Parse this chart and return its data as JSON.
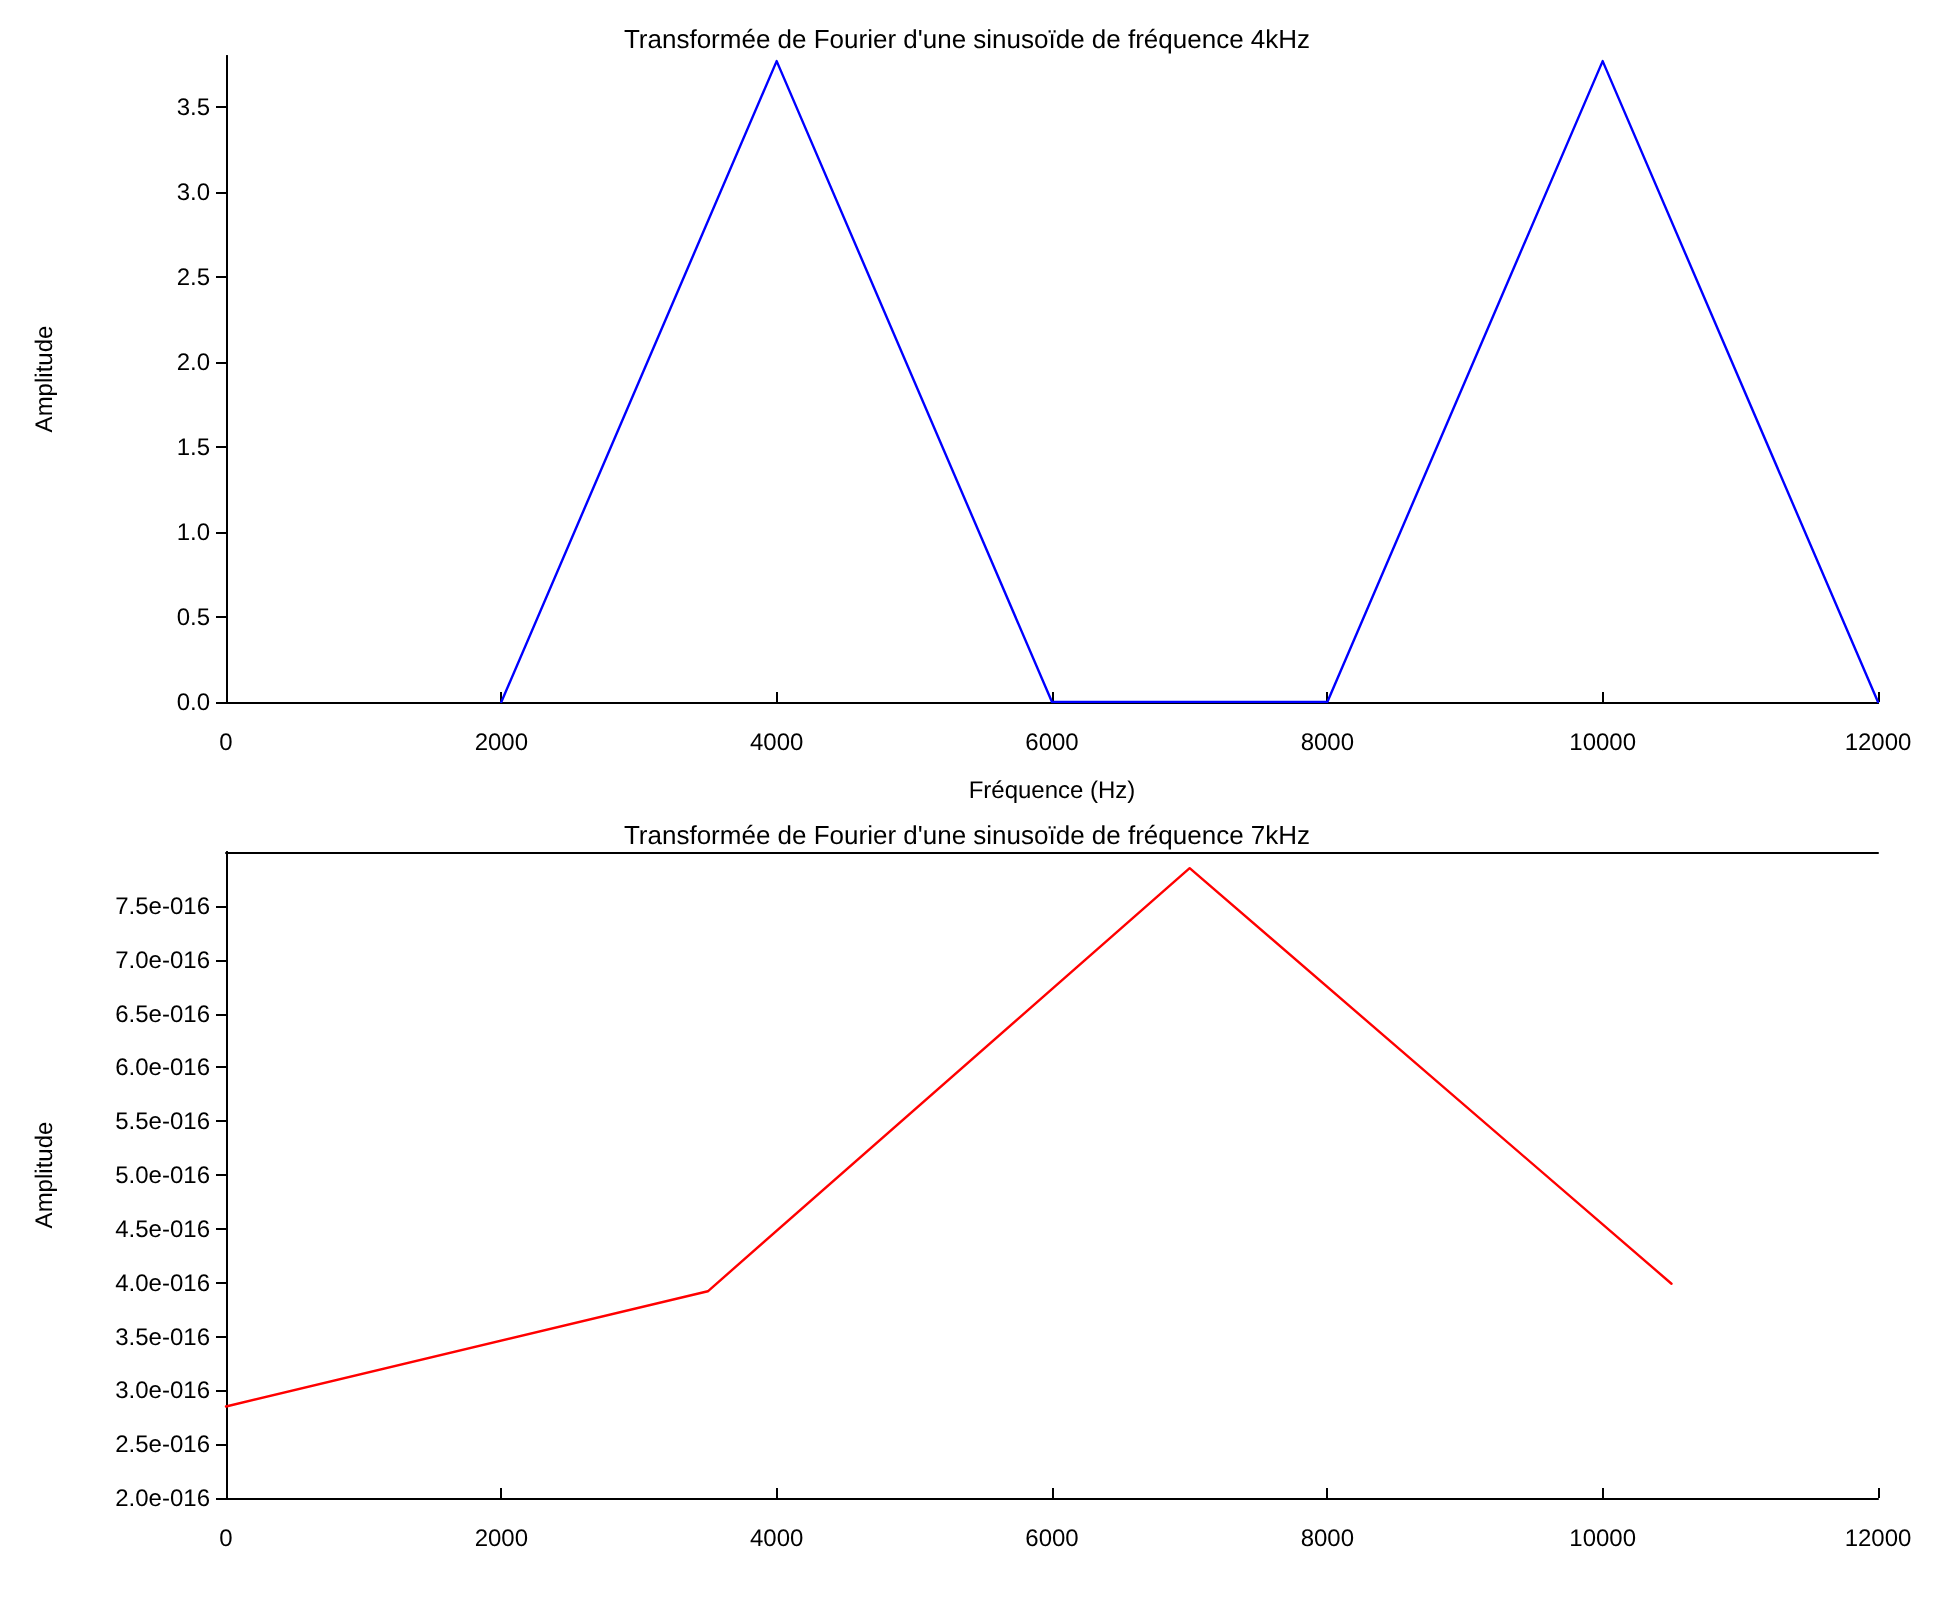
{
  "chart_data": [
    {
      "type": "line",
      "title": "Transformée de Fourier d'une sinusoïde de fréquence 4kHz",
      "xlabel": "Fréquence (Hz)",
      "ylabel": "Amplitude",
      "x": [
        2000,
        4000,
        6000,
        8000,
        10000,
        12000
      ],
      "series": [
        {
          "color": "#0000ff",
          "values": [
            0,
            3.77,
            0,
            0,
            3.77,
            0
          ]
        }
      ],
      "xlim": [
        0,
        12000
      ],
      "xticks": [
        0,
        2000,
        4000,
        6000,
        8000,
        10000,
        12000
      ],
      "ylim": [
        0,
        3.8
      ],
      "yticks": [
        {
          "value": 0,
          "label": "0.0"
        },
        0.5,
        {
          "value": 1,
          "label": "1.0"
        },
        1.5,
        {
          "value": 2,
          "label": "2.0"
        },
        2.5,
        {
          "value": 3,
          "label": "3.0"
        },
        3.5
      ],
      "marker": "none",
      "line_style": "solid"
    },
    {
      "type": "line",
      "title": "Transformée de Fourier d'une sinusoïde de fréquence 7kHz",
      "ylabel": "Amplitude",
      "x": [
        0,
        3500,
        7000,
        10500
      ],
      "series": [
        {
          "color": "#ff0000",
          "values": [
            2.85e-16,
            3.92e-16,
            7.85e-16,
            3.99e-16
          ]
        }
      ],
      "xlim": [
        0,
        12000
      ],
      "xticks": [
        0,
        2000,
        4000,
        6000,
        8000,
        10000,
        12000
      ],
      "ylim": [
        2e-16,
        8e-16
      ],
      "yticks": [
        {
          "value": 2e-16,
          "label": "2.0e-016"
        },
        {
          "value": 2.5e-16,
          "label": "2.5e-016"
        },
        {
          "value": 3e-16,
          "label": "3.0e-016"
        },
        {
          "value": 3.5e-16,
          "label": "3.5e-016"
        },
        {
          "value": 4e-16,
          "label": "4.0e-016"
        },
        {
          "value": 4.5e-16,
          "label": "4.5e-016"
        },
        {
          "value": 5e-16,
          "label": "5.0e-016"
        },
        {
          "value": 5.5e-16,
          "label": "5.5e-016"
        },
        {
          "value": 6e-16,
          "label": "6.0e-016"
        },
        {
          "value": 6.5e-16,
          "label": "6.5e-016"
        },
        {
          "value": 7e-16,
          "label": "7.0e-016"
        },
        {
          "value": 7.5e-16,
          "label": "7.5e-016"
        }
      ],
      "marker": "none",
      "line_style": "solid"
    }
  ]
}
